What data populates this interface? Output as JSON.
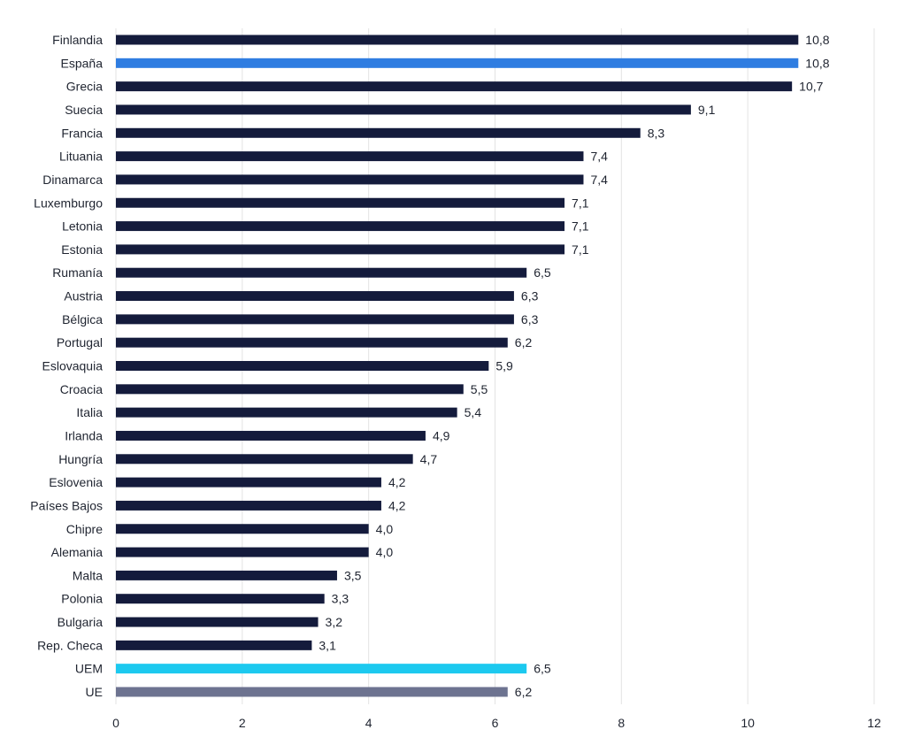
{
  "chart_data": {
    "type": "bar",
    "orientation": "horizontal",
    "categories": [
      "Finlandia",
      "España",
      "Grecia",
      "Suecia",
      "Francia",
      "Lituania",
      "Dinamarca",
      "Luxemburgo",
      "Letonia",
      "Estonia",
      "Rumanía",
      "Austria",
      "Bélgica",
      "Portugal",
      "Eslovaquia",
      "Croacia",
      "Italia",
      "Irlanda",
      "Hungría",
      "Eslovenia",
      "Países Bajos",
      "Chipre",
      "Alemania",
      "Malta",
      "Polonia",
      "Bulgaria",
      "Rep. Checa",
      "UEM",
      "UE"
    ],
    "values": [
      10.8,
      10.8,
      10.7,
      9.1,
      8.3,
      7.4,
      7.4,
      7.1,
      7.1,
      7.1,
      6.5,
      6.3,
      6.3,
      6.2,
      5.9,
      5.5,
      5.4,
      4.9,
      4.7,
      4.2,
      4.2,
      4.0,
      4.0,
      3.5,
      3.3,
      3.2,
      3.1,
      6.5,
      6.2
    ],
    "value_labels": [
      "10,8",
      "10,8",
      "10,7",
      "9,1",
      "8,3",
      "7,4",
      "7,4",
      "7,1",
      "7,1",
      "7,1",
      "6,5",
      "6,3",
      "6,3",
      "6,2",
      "5,9",
      "5,5",
      "5,4",
      "4,9",
      "4,7",
      "4,2",
      "4,2",
      "4,0",
      "4,0",
      "3,5",
      "3,3",
      "3,2",
      "3,1",
      "6,5",
      "6,2"
    ],
    "xlim": [
      0,
      12
    ],
    "x_ticks": [
      0,
      2,
      4,
      6,
      8,
      10,
      12
    ],
    "grid": "vertical",
    "title": "",
    "xlabel": "",
    "ylabel": ""
  },
  "colors": {
    "default": "#141b3c",
    "highlight": {
      "España": "#2f7de1",
      "UEM": "#1cc9ef",
      "UE": "#6d7390"
    }
  }
}
